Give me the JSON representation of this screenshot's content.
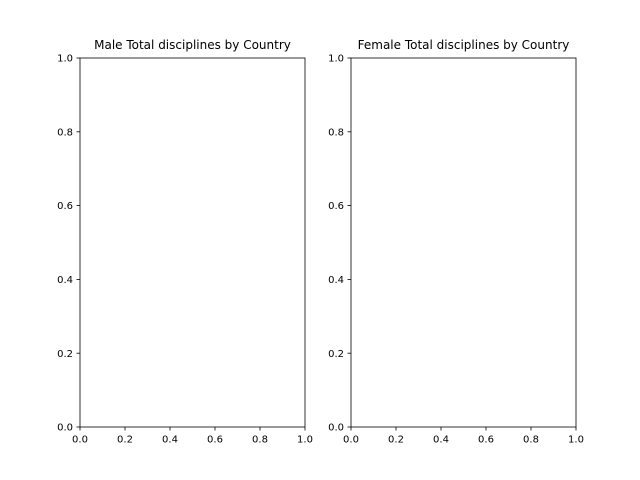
{
  "chart_data": [
    {
      "type": "bar",
      "title": "Male Total disciplines by Country",
      "xlim": [
        0,
        1
      ],
      "ylim": [
        0,
        1
      ],
      "xticks": [
        "0.0",
        "0.2",
        "0.4",
        "0.6",
        "0.8",
        "1.0"
      ],
      "yticks": [
        "0.0",
        "0.2",
        "0.4",
        "0.6",
        "0.8",
        "1.0"
      ],
      "grid": false,
      "categories": [],
      "values": []
    },
    {
      "type": "bar",
      "title": "Female Total disciplines by Country",
      "xlim": [
        0,
        1
      ],
      "ylim": [
        0,
        1
      ],
      "xticks": [
        "0.0",
        "0.2",
        "0.4",
        "0.6",
        "0.8",
        "1.0"
      ],
      "yticks": [
        "0.0",
        "0.2",
        "0.4",
        "0.6",
        "0.8",
        "1.0"
      ],
      "grid": false,
      "categories": [],
      "values": []
    }
  ]
}
